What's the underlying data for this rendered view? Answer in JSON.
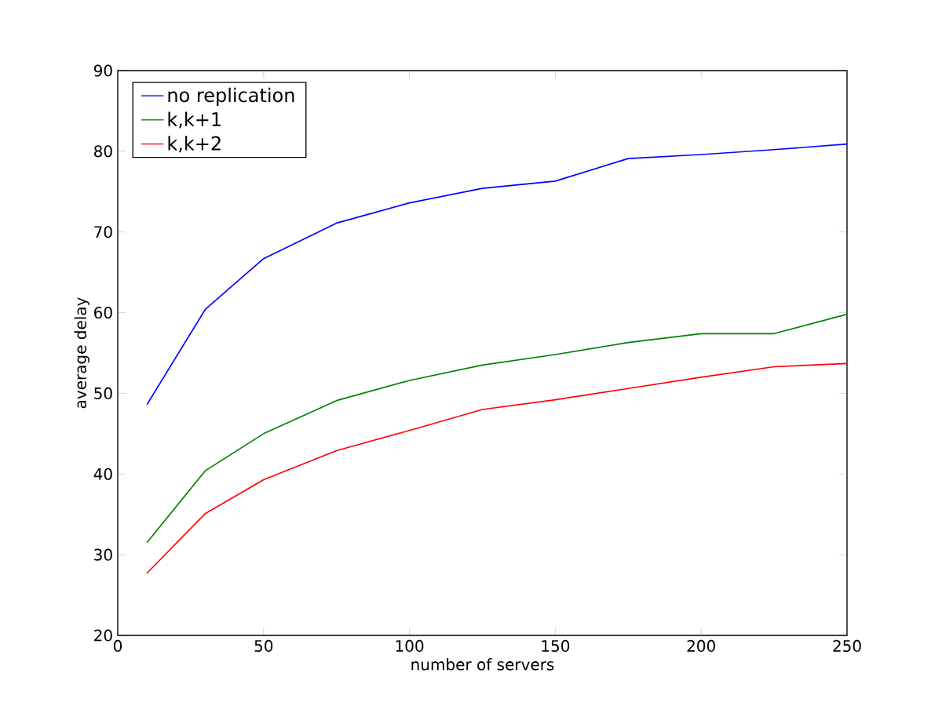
{
  "chart_data": {
    "type": "line",
    "xlabel": "number of servers",
    "ylabel": "average delay",
    "x": [
      10,
      30,
      50,
      75,
      100,
      125,
      150,
      175,
      200,
      225,
      250
    ],
    "series": [
      {
        "name": "no replication",
        "color": "#0000ff",
        "values": [
          48.6,
          60.4,
          66.7,
          71.1,
          73.6,
          75.4,
          76.3,
          79.1,
          79.6,
          80.2,
          80.9
        ]
      },
      {
        "name": "k,k+1",
        "color": "#008000",
        "values": [
          31.5,
          40.4,
          45.0,
          49.1,
          51.6,
          53.5,
          54.8,
          56.3,
          57.4,
          57.4,
          59.8
        ]
      },
      {
        "name": "k,k+2",
        "color": "#ff0000",
        "values": [
          27.7,
          35.1,
          39.3,
          42.9,
          45.4,
          48.0,
          49.2,
          50.6,
          52.0,
          53.3,
          53.7
        ]
      }
    ],
    "xlim": [
      0,
      250
    ],
    "xticks": [
      0,
      50,
      100,
      150,
      200,
      250
    ],
    "ylim": [
      20,
      90
    ],
    "yticks": [
      20,
      30,
      40,
      50,
      60,
      70,
      80,
      90
    ],
    "legend": "top left",
    "grid": false
  }
}
